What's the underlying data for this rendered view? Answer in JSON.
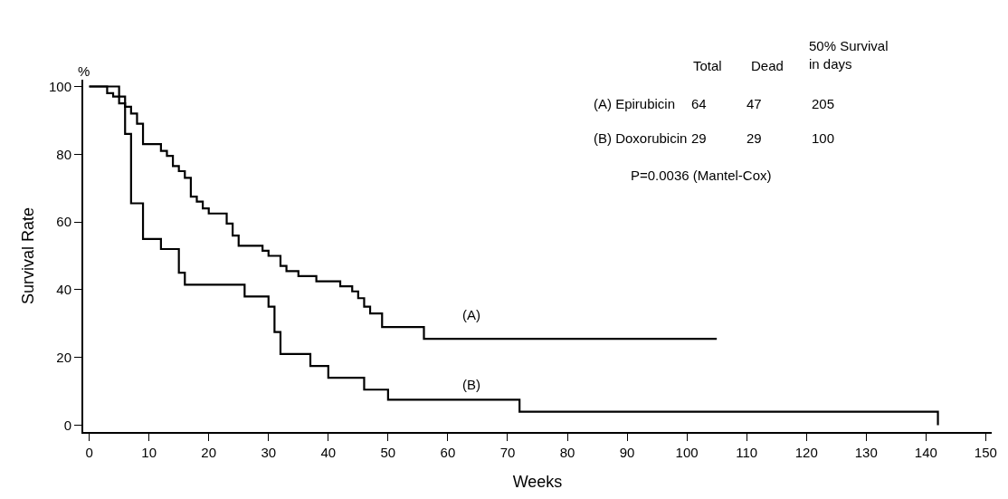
{
  "chart_data": {
    "type": "step",
    "xlabel": "Weeks",
    "ylabel": "Survival Rate",
    "xlim": [
      -1,
      151
    ],
    "ylim": [
      -2,
      102
    ],
    "xticks": [
      0,
      10,
      20,
      30,
      40,
      50,
      60,
      70,
      80,
      90,
      100,
      110,
      120,
      130,
      140,
      150
    ],
    "yticks": [
      0,
      20,
      40,
      60,
      80,
      100
    ],
    "marker": "none",
    "line_style": "solid",
    "series": [
      {
        "color": "#000000",
        "x": [
          0,
          3,
          4,
          5,
          6,
          7,
          8,
          9,
          12,
          13,
          14,
          15,
          16,
          17,
          18,
          19,
          20,
          23,
          24,
          25,
          29,
          30,
          32,
          33,
          35,
          38,
          42,
          44,
          45,
          46,
          47,
          49,
          56,
          105
        ],
        "values": [
          100,
          98,
          97,
          95,
          94,
          92,
          89,
          83,
          81,
          79.5,
          76.5,
          75,
          73,
          67.5,
          66,
          64,
          62.5,
          59.5,
          56,
          53,
          51.5,
          50,
          47,
          45.5,
          44,
          42.5,
          41,
          39.5,
          37.5,
          35,
          33,
          29,
          25.5,
          25.5
        ]
      },
      {
        "color": "#000000",
        "x": [
          0,
          5,
          6,
          7,
          9,
          12,
          15,
          16,
          26,
          30,
          31,
          32,
          37,
          40,
          46,
          50,
          72,
          142
        ],
        "values": [
          100,
          97,
          86,
          65.5,
          55,
          52,
          45,
          41.5,
          38,
          35,
          27.5,
          21,
          17.5,
          14,
          10.5,
          7.5,
          4,
          0
        ]
      }
    ],
    "annotations": [
      "(A)",
      "(B)",
      "%",
      "Total",
      "Dead",
      "50% Survival\nin days",
      "(A) Epirubicin",
      "64",
      "47",
      "205",
      "(B) Doxorubicin",
      "29",
      "29",
      "100",
      "P=0.0036 (Mantel-Cox)"
    ]
  }
}
